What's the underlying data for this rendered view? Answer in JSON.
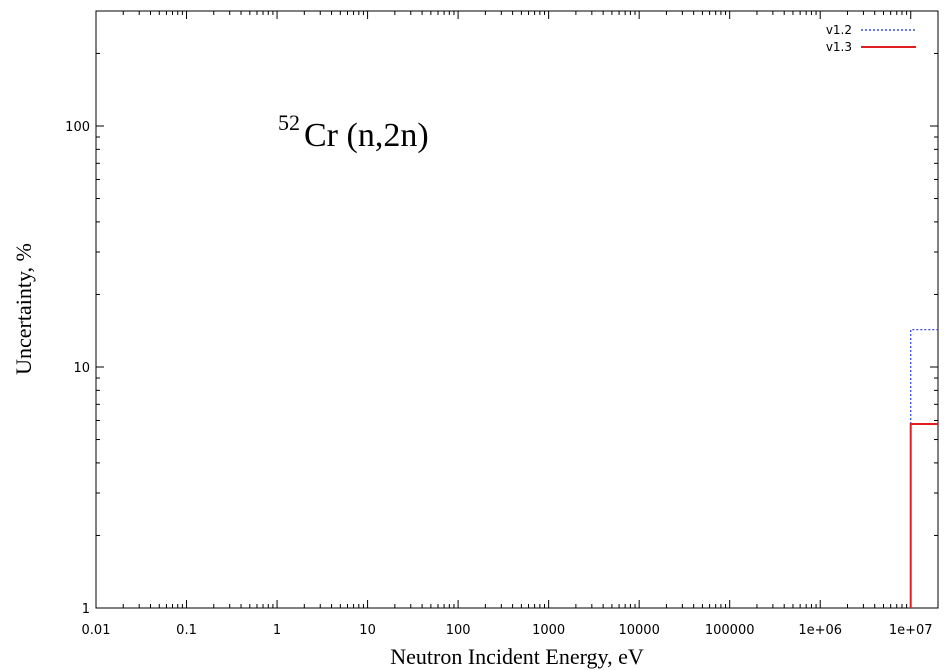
{
  "chart_data": {
    "type": "line",
    "xlabel": "Neutron Incident Energy, eV",
    "ylabel": "Uncertainty, %",
    "x_scale": "log",
    "y_scale": "log",
    "xlim": [
      0.01,
      20000000
    ],
    "ylim": [
      1,
      300
    ],
    "x_ticks": [
      {
        "value": 0.01,
        "label": "0.01"
      },
      {
        "value": 0.1,
        "label": "0.1"
      },
      {
        "value": 1,
        "label": "1"
      },
      {
        "value": 10,
        "label": "10"
      },
      {
        "value": 100,
        "label": "100"
      },
      {
        "value": 1000,
        "label": "1000"
      },
      {
        "value": 10000,
        "label": "10000"
      },
      {
        "value": 100000,
        "label": "100000"
      },
      {
        "value": 1000000,
        "label": "1e+06"
      },
      {
        "value": 10000000,
        "label": "1e+07"
      }
    ],
    "y_ticks": [
      {
        "value": 1,
        "label": "1"
      },
      {
        "value": 10,
        "label": "10"
      },
      {
        "value": 100,
        "label": "100"
      }
    ],
    "annotation": {
      "sup": "52",
      "text": "Cr (n,2n)"
    },
    "legend_position": "top-right",
    "grid": false,
    "series": [
      {
        "name": "v1.2",
        "color": "#3a4fd8",
        "style": "dotted",
        "points": [
          [
            10000000,
            1
          ],
          [
            10000000,
            14.3
          ],
          [
            20000000,
            14.3
          ]
        ]
      },
      {
        "name": "v1.3",
        "color": "#e02020",
        "style": "solid",
        "points": [
          [
            10000000,
            1
          ],
          [
            10000000,
            5.8
          ],
          [
            20000000,
            5.8
          ]
        ]
      }
    ]
  }
}
